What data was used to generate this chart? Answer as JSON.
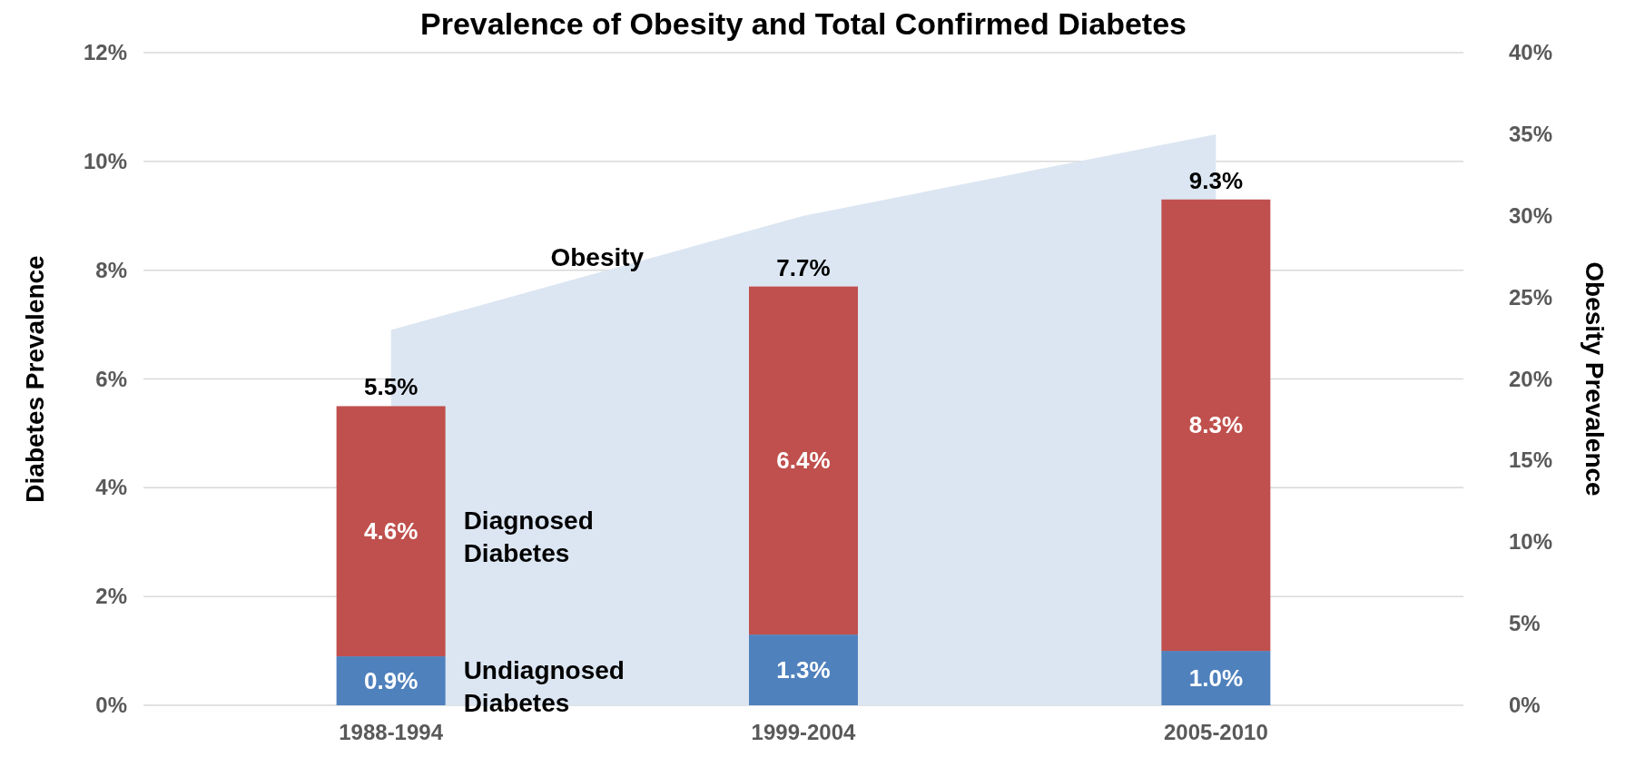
{
  "chart_data": {
    "type": "bar",
    "title": "Prevalence of Obesity and Total Confirmed Diabetes",
    "ylabel": "Diabetes Prevalence",
    "y2label": "Obesity Prevalence",
    "categories": [
      "1988-1994",
      "1999-2004",
      "2005-2010"
    ],
    "ylim": [
      0,
      12
    ],
    "yticks": [
      {
        "value": 0,
        "label": "0%"
      },
      {
        "value": 2,
        "label": "2%"
      },
      {
        "value": 4,
        "label": "4%"
      },
      {
        "value": 6,
        "label": "6%"
      },
      {
        "value": 8,
        "label": "8%"
      },
      {
        "value": 10,
        "label": "10%"
      },
      {
        "value": 12,
        "label": "12%"
      }
    ],
    "y2lim": [
      0,
      40
    ],
    "y2ticks": [
      {
        "value": 0,
        "label": "0%"
      },
      {
        "value": 5,
        "label": "5%"
      },
      {
        "value": 10,
        "label": "10%"
      },
      {
        "value": 15,
        "label": "15%"
      },
      {
        "value": 20,
        "label": "20%"
      },
      {
        "value": 25,
        "label": "25%"
      },
      {
        "value": 30,
        "label": "30%"
      },
      {
        "value": 35,
        "label": "35%"
      },
      {
        "value": 40,
        "label": "40%"
      }
    ],
    "stacked": true,
    "grid": "y",
    "series": [
      {
        "name": "Obesity",
        "type": "area",
        "axis": "y2",
        "color": "#dce6f2",
        "values": [
          23,
          30,
          35
        ]
      },
      {
        "name": "Undiagnosed Diabetes",
        "color": "#4f81bd",
        "values": [
          0.9,
          1.3,
          1.0
        ],
        "value_labels": [
          "0.9%",
          "1.3%",
          "1.0%"
        ]
      },
      {
        "name": "Diagnosed Diabetes",
        "color": "#c0504d",
        "values": [
          4.6,
          6.4,
          8.3
        ],
        "value_labels": [
          "4.6%",
          "6.4%",
          "8.3%"
        ]
      }
    ],
    "totals": [
      "5.5%",
      "7.7%",
      "9.3%"
    ]
  }
}
